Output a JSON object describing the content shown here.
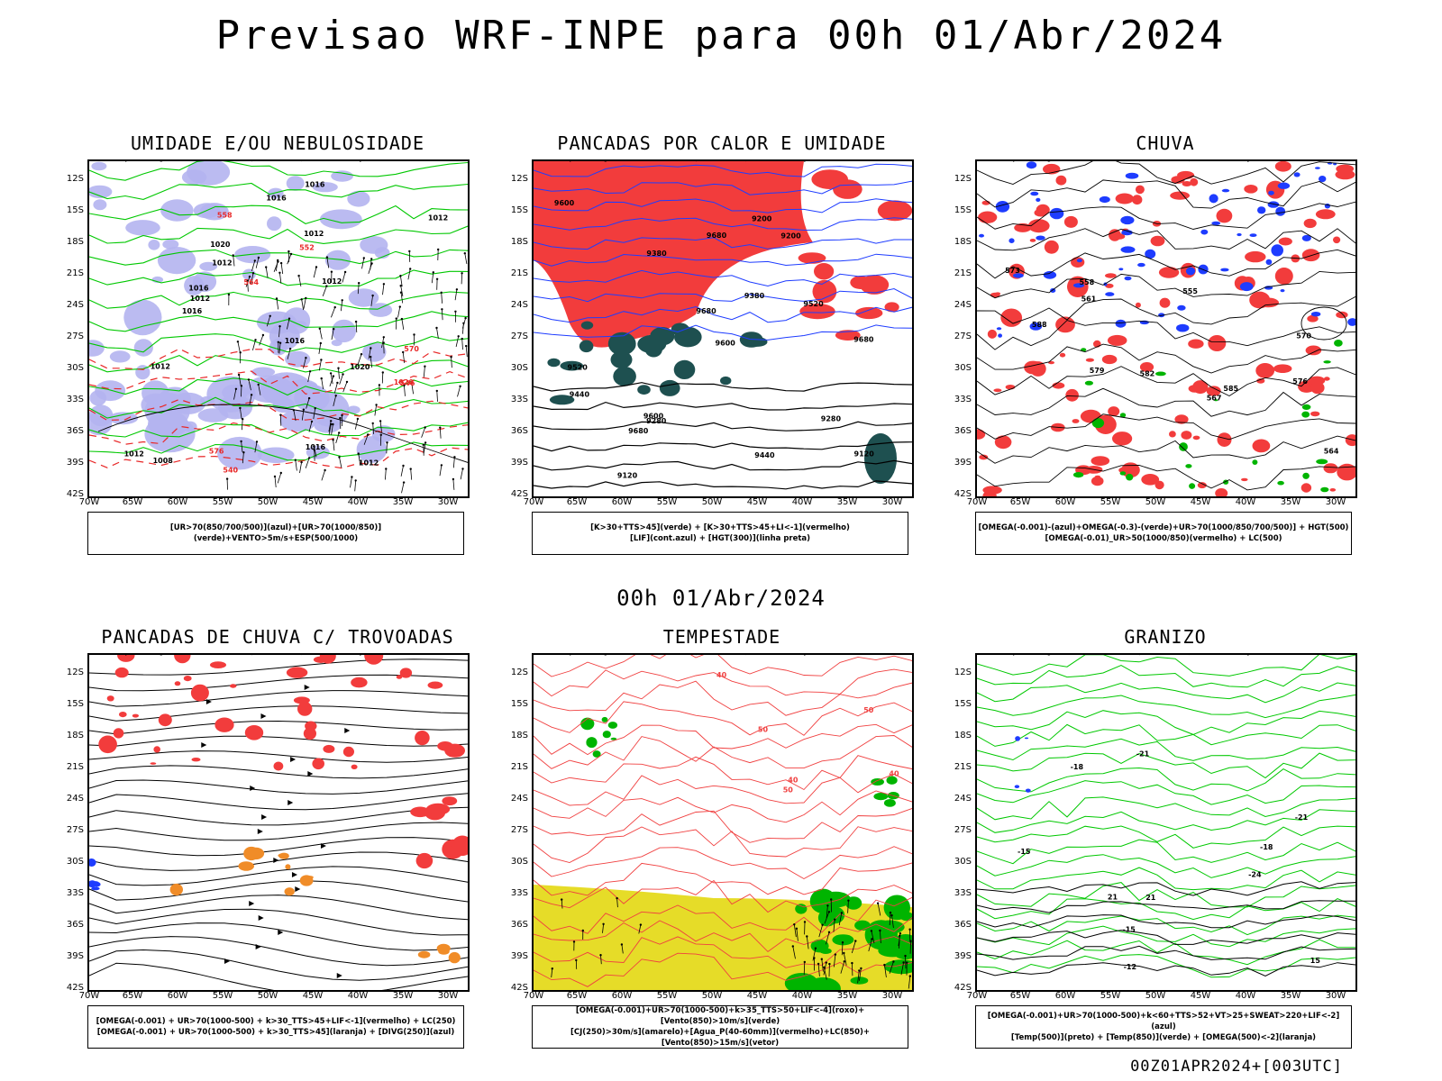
{
  "main_title": "Previsao WRF-INPE  para 00h 01/Abr/2024",
  "mid_title": "00h 01/Abr/2024",
  "footer": "00Z01APR2024+[003UTC]",
  "lat_labels": [
    "12S",
    "15S",
    "18S",
    "21S",
    "24S",
    "27S",
    "30S",
    "33S",
    "36S",
    "39S",
    "42S"
  ],
  "lon_labels": [
    "70W",
    "65W",
    "60W",
    "55W",
    "50W",
    "45W",
    "40W",
    "35W",
    "30W"
  ],
  "colors": {
    "humid_upper": "#b4b4f0",
    "humid_low": "#00c800",
    "red": "#f03c3c",
    "blue": "#1e3cff",
    "dark_teal": "#1e5050",
    "yellow": "#e6dc28",
    "orange": "#f08c28",
    "green": "#00b400"
  },
  "panels": [
    {
      "title": "UMIDADE E/OU NEBULOSIDADE",
      "legend": [
        "[UR>70(850/700/500)](azul)+[UR>70(1000/850)](verde)+VENTO>5m/s+ESP(500/1000)"
      ],
      "contour_labels": [
        "1012",
        "1012",
        "1012",
        "1012",
        "1020",
        "1012",
        "1012",
        "1008",
        "1016",
        "1016",
        "1012",
        "1016",
        "1016",
        "1016",
        "1016",
        "1012",
        "1020",
        "1020",
        "576",
        "570",
        "564",
        "558",
        "552",
        "546",
        "540"
      ]
    },
    {
      "title": "PANCADAS POR CALOR E UMIDADE",
      "legend": [
        "[K>30+TTS>45](verde) + [K>30+TTS>45+LI<-1](vermelho)",
        "[LIF](cont.azul) + [HGT(300)](linha preta)"
      ],
      "contour_labels": [
        "9680",
        "9600",
        "9680",
        "9680",
        "9680",
        "9600",
        "9600",
        "9520",
        "9520",
        "9440",
        "9440",
        "9380",
        "9380",
        "9280",
        "9280",
        "9200",
        "9200",
        "9120",
        "9120"
      ]
    },
    {
      "title": "CHUVA",
      "legend": [
        "[OMEGA(-0.001)-(azul)+OMEGA(-0.3)-(verde)+UR>70(1000/850/700/500)] + HGT(500)",
        "[OMEGA(-0.01)_UR>50(1000/850)(vermelho) + LC(500)"
      ],
      "contour_labels": [
        "588",
        "585",
        "582",
        "579",
        "576",
        "573",
        "570",
        "567",
        "564",
        "561",
        "558",
        "555"
      ]
    },
    {
      "title": "PANCADAS DE CHUVA C/ TROVOADAS",
      "legend": [
        "[OMEGA(-0.001) + UR>70(1000-500) + k>30_TTS>45+LIF<-1](vermelho) + LC(250)",
        "[OMEGA(-0.001) + UR>70(1000-500) + k>30_TTS>45](laranja) + [DIVG(250)](azul)"
      ],
      "contour_labels": []
    },
    {
      "title": "TEMPESTADE",
      "legend": [
        "[OMEGA(-0.001)+UR>70(1000-500)+k>35_TTS>50+LIF<-4](roxo)+[Vento(850)>10m/s](verde)",
        "[CJ(250)>30m/s](amarelo)+[Agua_P(40-60mm)](vermelho)+LC(850)+[Vento(850)>15m/s](vetor)"
      ],
      "contour_labels": [
        "40",
        "50",
        "50",
        "40",
        "50",
        "40"
      ]
    },
    {
      "title": "GRANIZO",
      "legend": [
        "[OMEGA(-0.001)+UR>70(1000-500)+k<60+TTS>52+VT>25+SWEAT>220+LIF<-2](azul)",
        "[Temp(500)](preto) + [Temp(850)](verde) + [OMEGA(500)<-2](laranja)"
      ],
      "contour_labels": [
        "21",
        "21",
        "15",
        "-12",
        "-15",
        "-18",
        "-21",
        "-24",
        "-15",
        "-18",
        "-21"
      ]
    }
  ]
}
